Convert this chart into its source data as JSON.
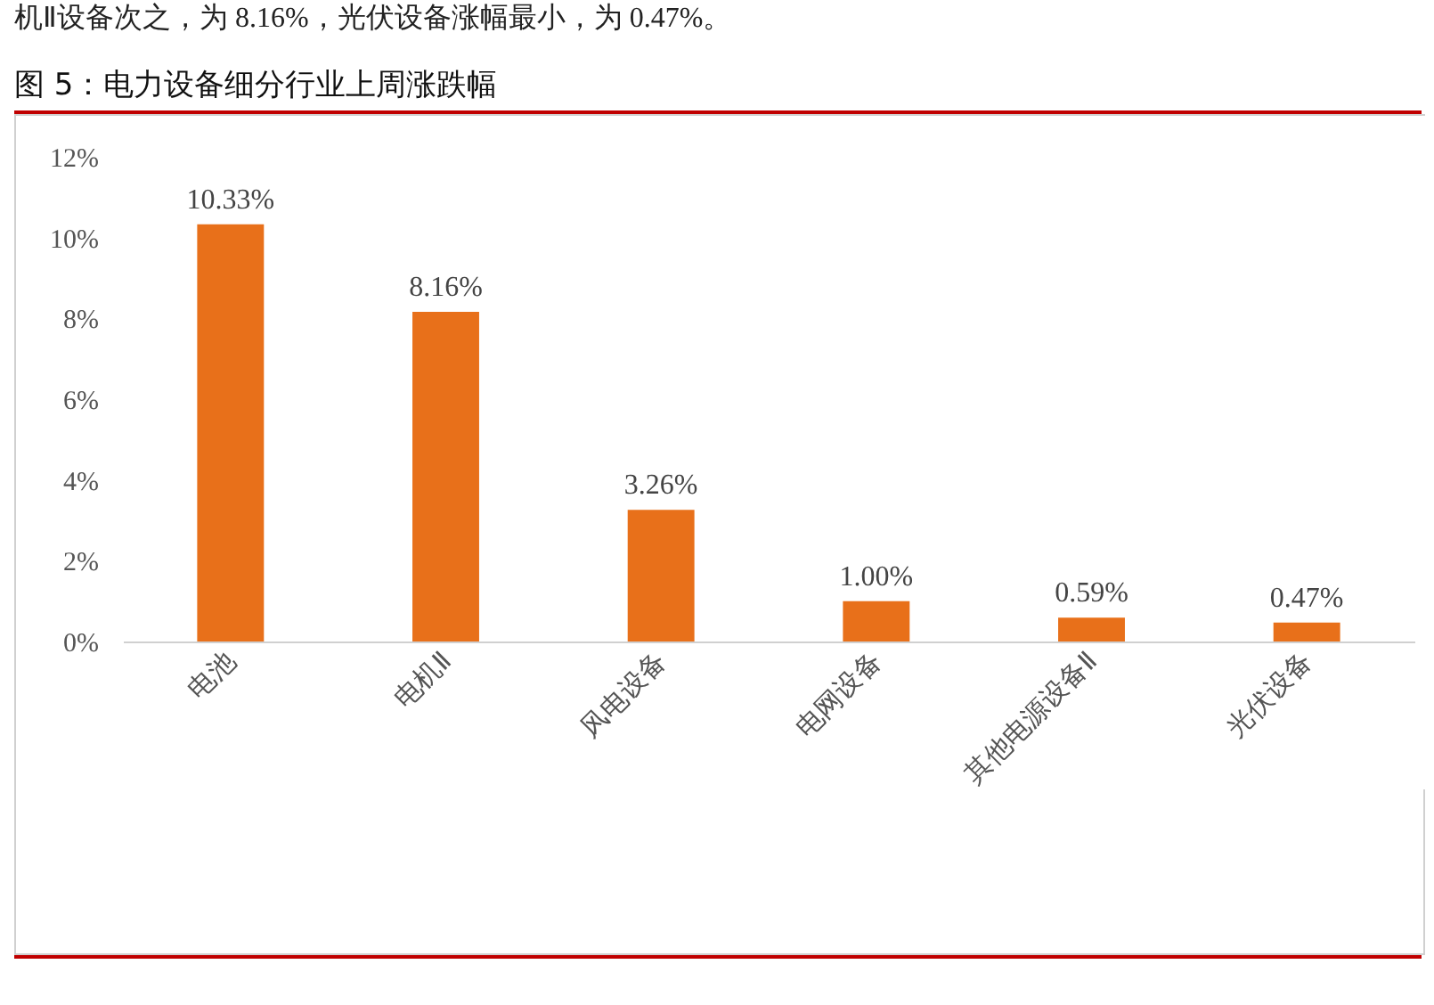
{
  "chart_data": {
    "type": "bar",
    "title": "图 5：电力设备细分行业上周涨跌幅",
    "annotations": [
      "机Ⅱ设备次之，为 8.16%，光伏设备涨幅最小，为 0.47%。"
    ],
    "categories": [
      "电池",
      "电机Ⅱ",
      "风电设备",
      "电网设备",
      "其他电源设备Ⅱ",
      "光伏设备"
    ],
    "values": [
      10.33,
      8.16,
      3.26,
      1.0,
      0.59,
      0.47
    ],
    "value_labels": [
      "10.33%",
      "8.16%",
      "3.26%",
      "1.00%",
      "0.59%",
      "0.47%"
    ],
    "color": "#e8701a",
    "ylim": [
      0,
      12
    ],
    "yticks": [
      {
        "value": 0,
        "label": "0%"
      },
      {
        "value": 2,
        "label": "2%"
      },
      {
        "value": 4,
        "label": "4%"
      },
      {
        "value": 6,
        "label": "6%"
      },
      {
        "value": 8,
        "label": "8%"
      },
      {
        "value": 10,
        "label": "10%"
      },
      {
        "value": 12,
        "label": "12%"
      }
    ],
    "grid": false
  }
}
